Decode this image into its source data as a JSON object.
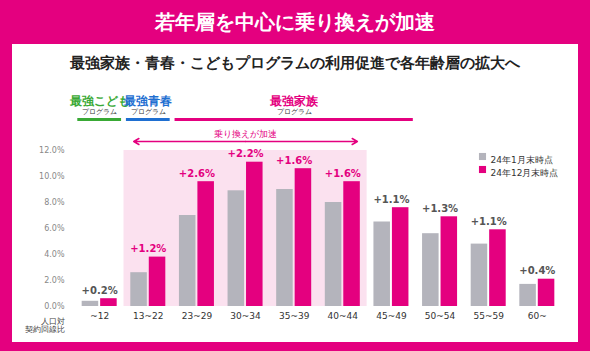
{
  "chart_data": {
    "type": "bar",
    "title": "若年層を中心に乗り換えが加速",
    "subtitle": "最強家族・青春・こどもプログラムの利用促進で各年齢層の拡大へ",
    "y_label": "人口対\n契約回線比",
    "categories": [
      "~12",
      "13~22",
      "23~29",
      "30~34",
      "35~39",
      "40~44",
      "45~49",
      "50~54",
      "55~59",
      "60~"
    ],
    "series": [
      {
        "name": "24年1月末時点",
        "color": "#b4b4bc",
        "values": [
          0.4,
          2.6,
          7.0,
          8.9,
          9.0,
          8.0,
          6.5,
          5.6,
          4.8,
          1.7
        ]
      },
      {
        "name": "24年12月末時点",
        "color": "#e4007f",
        "values": [
          0.6,
          3.8,
          9.6,
          11.1,
          10.6,
          9.6,
          7.6,
          6.9,
          5.9,
          2.1
        ]
      }
    ],
    "change_labels": [
      "+0.2%",
      "+1.2%",
      "+2.6%",
      "+2.2%",
      "+1.6%",
      "+1.6%",
      "+1.1%",
      "+1.3%",
      "+1.1%",
      "+0.4%"
    ],
    "programs": [
      {
        "name": "最強こども",
        "suffix": "プログラム",
        "color": "#39a935",
        "from": "~12",
        "to": "~12"
      },
      {
        "name": "最強青春",
        "suffix": "プログラム",
        "color": "#1f6fd1",
        "from": "13~22",
        "to": "13~22"
      },
      {
        "name": "最強家族",
        "suffix": "プログラム",
        "color": "#e4007f",
        "from": "23~29",
        "to": "45~49"
      }
    ],
    "highlight": {
      "text": "乗り換えが加速",
      "from": "13~22",
      "to": "40~44"
    },
    "ylim": [
      0,
      12
    ],
    "yticks": [
      {
        "value": 0,
        "label": "0.0%"
      },
      {
        "value": 2,
        "label": "2.0%"
      },
      {
        "value": 4,
        "label": "4.0%"
      },
      {
        "value": 6,
        "label": "6.0%"
      },
      {
        "value": 8,
        "label": "8.0%"
      },
      {
        "value": 10,
        "label": "10.0%"
      },
      {
        "value": 12,
        "label": "12.0%"
      }
    ],
    "grid": false,
    "legend": "top-right"
  }
}
